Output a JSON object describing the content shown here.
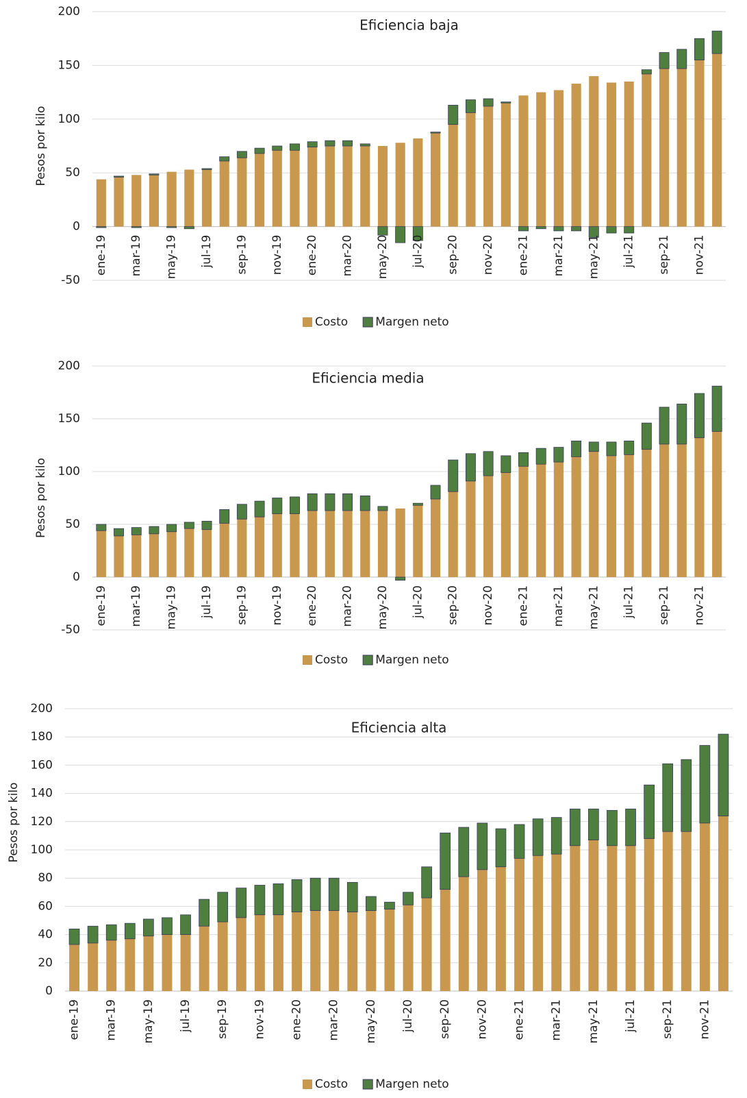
{
  "chart_data": [
    {
      "type": "bar",
      "stacked": true,
      "title": "Eficiencia baja",
      "ylabel": "Pesos por kilo",
      "categories": [
        "ene-19",
        null,
        "mar-19",
        null,
        "may-19",
        null,
        "jul-19",
        null,
        "sep-19",
        null,
        "nov-19",
        null,
        "ene-20",
        null,
        "mar-20",
        null,
        "may-20",
        null,
        "jul-20",
        null,
        "sep-20",
        null,
        "nov-20",
        null,
        "ene-21",
        null,
        "mar-21",
        null,
        "may-21",
        null,
        "jul-21",
        null,
        "sep-21",
        null,
        "nov-21",
        null
      ],
      "series": [
        {
          "name": "Costo",
          "color": "#c9984f",
          "values": [
            44,
            46,
            48,
            48,
            51,
            53,
            53,
            61,
            64,
            68,
            71,
            71,
            74,
            75,
            75,
            75,
            75,
            78,
            82,
            87,
            95,
            106,
            112,
            115,
            122,
            125,
            127,
            133,
            140,
            134,
            135,
            142,
            147,
            147,
            155,
            161
          ]
        },
        {
          "name": "Margen neto",
          "color": "#4e7f3f",
          "values": [
            -1,
            1,
            -1,
            1,
            -1,
            -2,
            1,
            4,
            6,
            5,
            4,
            6,
            5,
            5,
            5,
            2,
            -8,
            -15,
            -13,
            1,
            18,
            12,
            7,
            1,
            -4,
            -2,
            -4,
            -4,
            -10,
            -6,
            -6,
            4,
            15,
            18,
            20,
            21
          ]
        }
      ],
      "ylim": [
        -50,
        200
      ],
      "yticks": [
        -50,
        0,
        50,
        100,
        150,
        200
      ],
      "grid": true,
      "legend": "bottom"
    },
    {
      "type": "bar",
      "stacked": true,
      "title": "Eficiencia media",
      "ylabel": "Pesos por kilo",
      "categories": [
        "ene-19",
        null,
        "mar-19",
        null,
        "may-19",
        null,
        "jul-19",
        null,
        "sep-19",
        null,
        "nov-19",
        null,
        "ene-20",
        null,
        "mar-20",
        null,
        "may-20",
        null,
        "jul-20",
        null,
        "sep-20",
        null,
        "nov-20",
        null,
        "ene-21",
        null,
        "mar-21",
        null,
        "may-21",
        null,
        "jul-21",
        null,
        "sep-21",
        null,
        "nov-21",
        null
      ],
      "series": [
        {
          "name": "Costo",
          "color": "#c9984f",
          "values": [
            44,
            39,
            40,
            41,
            43,
            46,
            45,
            51,
            55,
            57,
            60,
            60,
            63,
            63,
            63,
            63,
            63,
            65,
            68,
            74,
            81,
            91,
            96,
            99,
            105,
            107,
            109,
            114,
            119,
            115,
            116,
            121,
            126,
            126,
            132,
            138
          ]
        },
        {
          "name": "Margen neto",
          "color": "#4e7f3f",
          "values": [
            6,
            7,
            7,
            7,
            7,
            6,
            8,
            13,
            14,
            15,
            15,
            16,
            16,
            16,
            16,
            14,
            4,
            -3,
            2,
            13,
            30,
            26,
            23,
            16,
            13,
            15,
            14,
            15,
            9,
            13,
            13,
            25,
            35,
            38,
            42,
            43
          ]
        }
      ],
      "ylim": [
        -50,
        200
      ],
      "yticks": [
        -50,
        0,
        50,
        100,
        150,
        200
      ],
      "grid": true,
      "legend": "bottom"
    },
    {
      "type": "bar",
      "stacked": true,
      "title": "Eficiencia alta",
      "ylabel": "Pesos por kilo",
      "categories": [
        "ene-19",
        null,
        "mar-19",
        null,
        "may-19",
        null,
        "jul-19",
        null,
        "sep-19",
        null,
        "nov-19",
        null,
        "ene-20",
        null,
        "mar-20",
        null,
        "may-20",
        null,
        "jul-20",
        null,
        "sep-20",
        null,
        "nov-20",
        null,
        "ene-21",
        null,
        "mar-21",
        null,
        "may-21",
        null,
        "jul-21",
        null,
        "sep-21",
        null,
        "nov-21",
        null
      ],
      "series": [
        {
          "name": "Costo",
          "color": "#c9984f",
          "values": [
            33,
            34,
            36,
            37,
            39,
            40,
            40,
            46,
            49,
            52,
            54,
            54,
            56,
            57,
            57,
            56,
            57,
            58,
            61,
            66,
            72,
            81,
            86,
            88,
            94,
            96,
            97,
            103,
            107,
            103,
            103,
            108,
            113,
            113,
            119,
            124
          ]
        },
        {
          "name": "Margen neto",
          "color": "#4e7f3f",
          "values": [
            11,
            12,
            11,
            11,
            12,
            12,
            14,
            19,
            21,
            21,
            21,
            22,
            23,
            23,
            23,
            21,
            10,
            5,
            9,
            22,
            40,
            35,
            33,
            27,
            24,
            26,
            26,
            26,
            22,
            25,
            26,
            38,
            48,
            51,
            55,
            58
          ]
        }
      ],
      "ylim": [
        0,
        200
      ],
      "yticks": [
        0,
        20,
        40,
        60,
        80,
        100,
        120,
        140,
        160,
        180,
        200
      ],
      "grid": true,
      "legend": "bottom"
    }
  ]
}
